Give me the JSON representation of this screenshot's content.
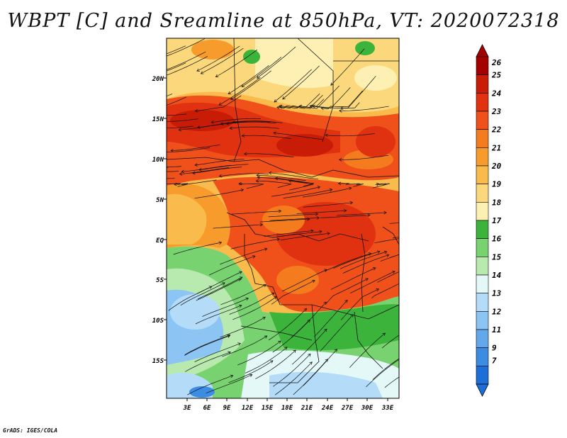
{
  "title": "WBPT [C] and Sreamline at 850hPa, VT: 2020072318",
  "credit": "GrADS: IGES/COLA",
  "map": {
    "lat_labels": [
      "20N",
      "15N",
      "10N",
      "5N",
      "EQ",
      "5S",
      "10S",
      "15S"
    ],
    "lon_labels": [
      "3E",
      "6E",
      "9E",
      "12E",
      "15E",
      "18E",
      "21E",
      "24E",
      "27E",
      "30E",
      "33E"
    ]
  },
  "colorbar": {
    "labels": [
      "26",
      "25",
      "24",
      "23",
      "22",
      "21",
      "20",
      "19",
      "18",
      "17",
      "16",
      "15",
      "14",
      "13",
      "12",
      "11",
      "9",
      "7"
    ],
    "colors": [
      "#a50000",
      "#c81c06",
      "#e03210",
      "#f0501a",
      "#f47c1e",
      "#f79c2c",
      "#f9bc4c",
      "#fbd87c",
      "#fdf0b2",
      "#3cb43c",
      "#78d270",
      "#b8eab0",
      "#e4f8f8",
      "#b4dcf8",
      "#8cc4f4",
      "#64a8ec",
      "#3c8ce4",
      "#1e6ed8"
    ]
  }
}
